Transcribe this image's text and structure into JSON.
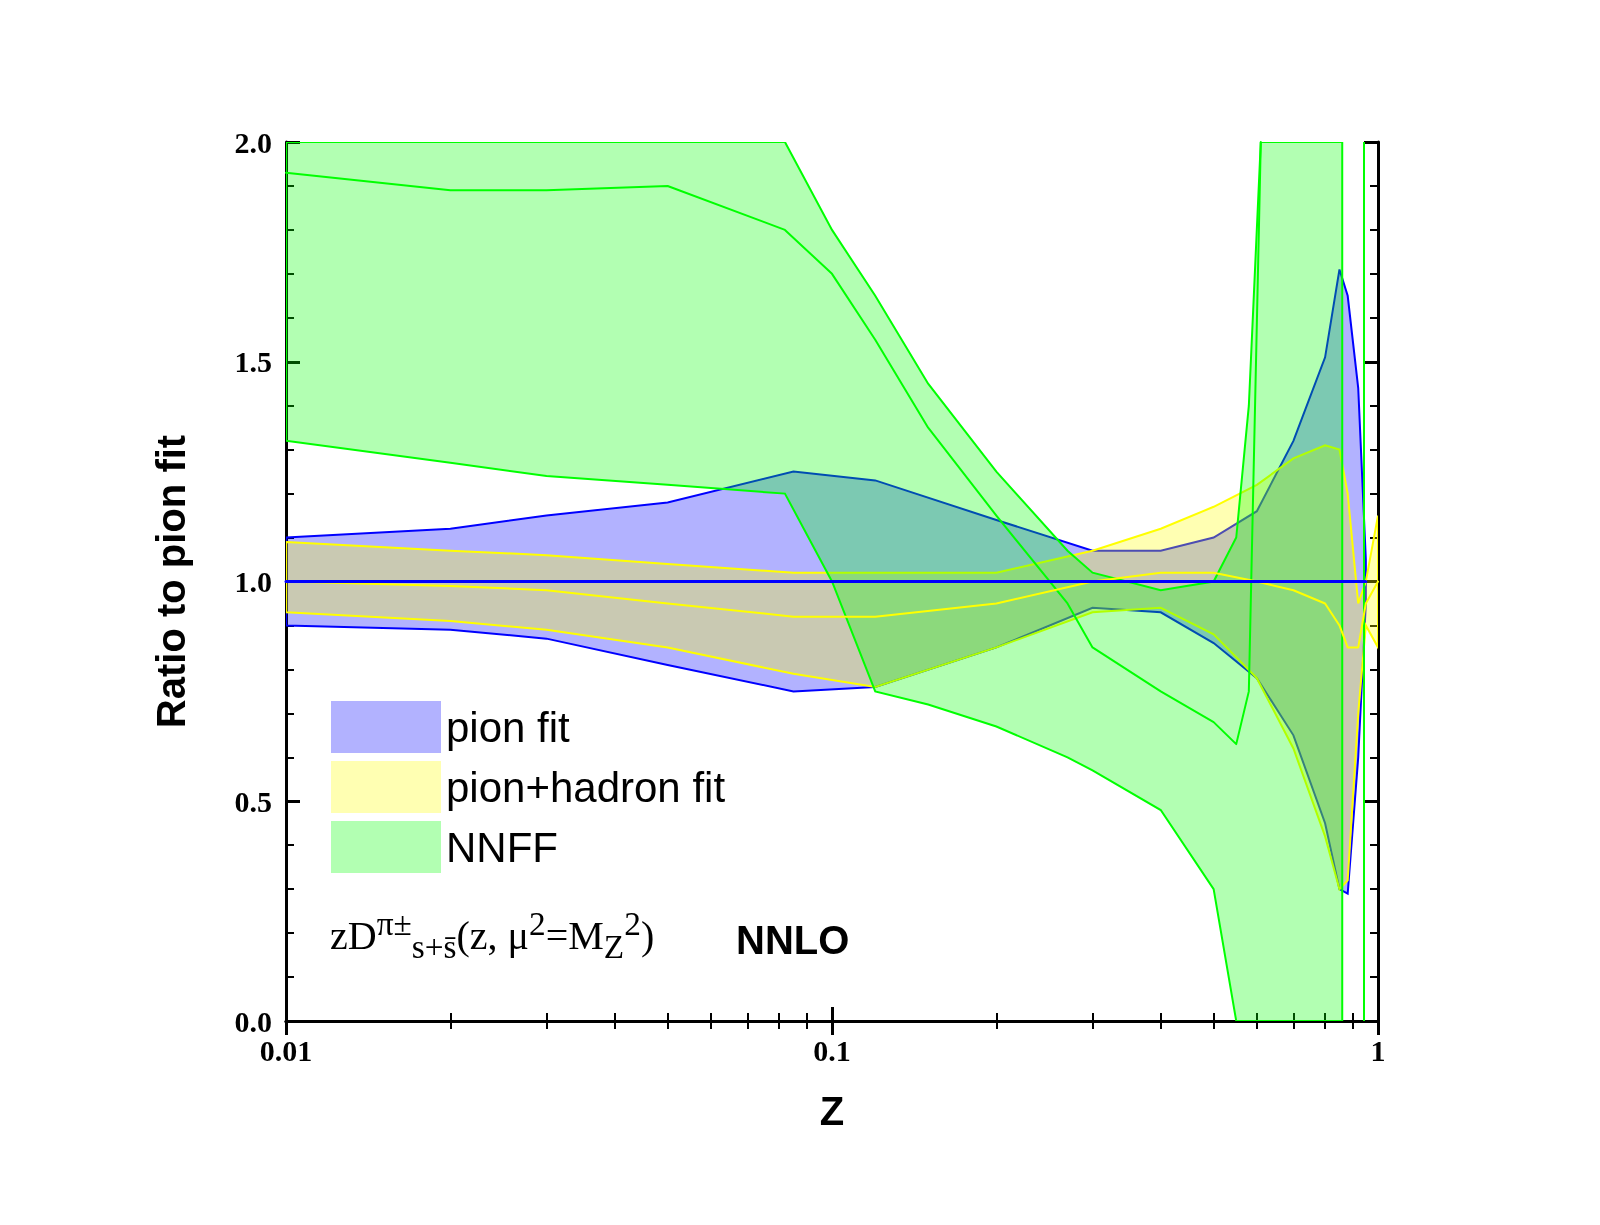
{
  "chart_data": {
    "type": "line",
    "xlabel": "Z",
    "ylabel": "Ratio to pion fit",
    "log": "x",
    "xlim": [
      0.01,
      1
    ],
    "xticks": [
      {
        "value": 0.01,
        "label": "0.01"
      },
      {
        "value": 0.1,
        "label": "0.1"
      },
      {
        "value": 1,
        "label": "1"
      }
    ],
    "ylim": [
      0,
      2
    ],
    "yticks": [
      {
        "value": 0,
        "label": "0.0"
      },
      {
        "value": 0.5,
        "label": "0.5"
      },
      {
        "value": 1,
        "label": "1.0"
      },
      {
        "value": 1.5,
        "label": "1.5"
      },
      {
        "value": 2,
        "label": "2.0"
      }
    ],
    "grid": false,
    "legend": "bottom left",
    "marker": "none",
    "line_style": "solid",
    "series": [
      {
        "name": "pion fit",
        "color": "#0000ff",
        "x": [
          0.01,
          0.02,
          0.03,
          0.05,
          0.085,
          0.12,
          0.2,
          0.3,
          0.4,
          0.5,
          0.6,
          0.7,
          0.8,
          0.85,
          0.88,
          0.92,
          0.95
        ],
        "values": [
          1,
          1,
          1,
          1,
          1,
          1,
          1,
          1,
          1,
          1,
          1,
          1,
          1,
          1,
          1,
          1,
          1
        ],
        "upper": [
          1.1,
          1.12,
          1.15,
          1.18,
          1.25,
          1.23,
          1.14,
          1.07,
          1.07,
          1.1,
          1.16,
          1.32,
          1.51,
          1.71,
          1.65,
          1.44,
          1.05
        ],
        "lower": [
          0.9,
          0.89,
          0.87,
          0.81,
          0.75,
          0.76,
          0.85,
          0.94,
          0.93,
          0.86,
          0.78,
          0.65,
          0.45,
          0.3,
          0.29,
          0.6,
          0.95
        ]
      },
      {
        "name": "pion+hadron fit",
        "color": "#ffff00",
        "x": [
          0.01,
          0.02,
          0.03,
          0.05,
          0.085,
          0.12,
          0.2,
          0.3,
          0.4,
          0.5,
          0.6,
          0.7,
          0.8,
          0.85,
          0.88,
          0.92,
          0.95,
          1
        ],
        "values": [
          1,
          0.99,
          0.98,
          0.95,
          0.92,
          0.92,
          0.95,
          1,
          1.02,
          1.02,
          1,
          0.98,
          0.95,
          0.9,
          0.85,
          0.85,
          0.95,
          1
        ],
        "upper": [
          1.09,
          1.07,
          1.06,
          1.04,
          1.02,
          1.02,
          1.02,
          1.07,
          1.12,
          1.17,
          1.22,
          1.28,
          1.31,
          1.3,
          1.2,
          0.95,
          1,
          1.15
        ],
        "lower": [
          0.93,
          0.91,
          0.89,
          0.85,
          0.79,
          0.76,
          0.85,
          0.93,
          0.94,
          0.88,
          0.78,
          0.62,
          0.42,
          0.3,
          0.32,
          0.7,
          0.9,
          0.85
        ]
      },
      {
        "name": "NNFF",
        "color": "#00ff00",
        "x": [
          0.01,
          0.02,
          0.03,
          0.05,
          0.082,
          0.1,
          0.12,
          0.15,
          0.2,
          0.27,
          0.3,
          0.4,
          0.5,
          0.55,
          0.58,
          0.61,
          0.7,
          0.8,
          0.86
        ],
        "values": [
          1.93,
          1.89,
          1.89,
          1.9,
          1.8,
          1.7,
          1.55,
          1.35,
          1.15,
          0.95,
          0.85,
          0.75,
          0.68,
          0.63,
          0.75,
          2,
          null,
          null,
          null
        ],
        "upper": [
          2,
          2,
          2,
          2,
          2,
          1.8,
          1.65,
          1.45,
          1.25,
          1.07,
          1.02,
          0.98,
          1,
          1.1,
          1.4,
          2,
          2,
          2,
          2
        ],
        "lower": [
          1.32,
          1.27,
          1.24,
          1.22,
          1.2,
          1,
          0.75,
          0.72,
          0.67,
          0.6,
          0.57,
          0.48,
          0.3,
          0,
          0,
          0,
          0,
          0,
          0
        ]
      }
    ],
    "ref_lines": [
      {
        "axis": "x",
        "value": 0.94,
        "color": "#00ff00"
      }
    ],
    "annotations": [
      "zD$^{π±}$$_{s+s̄}$(z, μ$^{2}$=M$_{Z}$$^{2}$)",
      "NNLO"
    ]
  }
}
